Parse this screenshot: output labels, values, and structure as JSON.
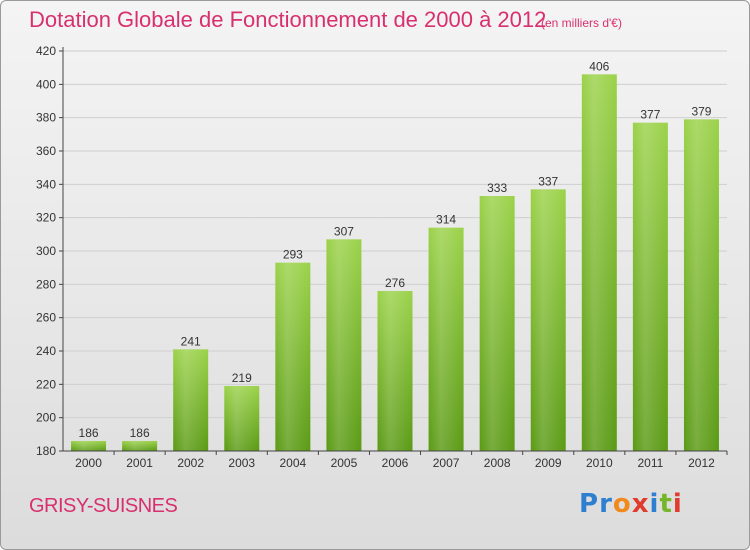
{
  "header": {
    "title": "Dotation Globale de Fonctionnement de 2000 à 2012",
    "subtitle": "(en milliers d'€)"
  },
  "footer": {
    "commune": "GRISY-SUISNES",
    "brand": "Proxiti",
    "brand_letters": [
      {
        "ch": "P",
        "color": "#2f7fd1"
      },
      {
        "ch": "r",
        "color": "#2f7fd1"
      },
      {
        "ch": "o",
        "color": "#f08a1c"
      },
      {
        "ch": "x",
        "color": "#e03c2e"
      },
      {
        "ch": "i",
        "color": "#2f7fd1"
      },
      {
        "ch": "t",
        "color": "#74b52a"
      },
      {
        "ch": "i",
        "color": "#e03c2e"
      }
    ]
  },
  "colors": {
    "bar_top": "#9bd24a",
    "bar_bottom": "#5a9a14",
    "grid": "#cfcfcf",
    "axis": "#444444",
    "label": "#333333",
    "title": "#d8306e"
  },
  "chart_data": {
    "type": "bar",
    "title": "Dotation Globale de Fonctionnement de 2000 à 2012",
    "subtitle": "(en milliers d'€)",
    "categories": [
      "2000",
      "2001",
      "2002",
      "2003",
      "2004",
      "2005",
      "2006",
      "2007",
      "2008",
      "2009",
      "2010",
      "2011",
      "2012"
    ],
    "values": [
      186,
      186,
      241,
      219,
      293,
      307,
      276,
      314,
      333,
      337,
      406,
      377,
      379
    ],
    "ylim": [
      180,
      420
    ],
    "yticks": [
      180,
      200,
      220,
      240,
      260,
      280,
      300,
      320,
      340,
      360,
      380,
      400,
      420
    ],
    "xlabel": "",
    "ylabel": "",
    "grid": true,
    "data_labels": true
  }
}
